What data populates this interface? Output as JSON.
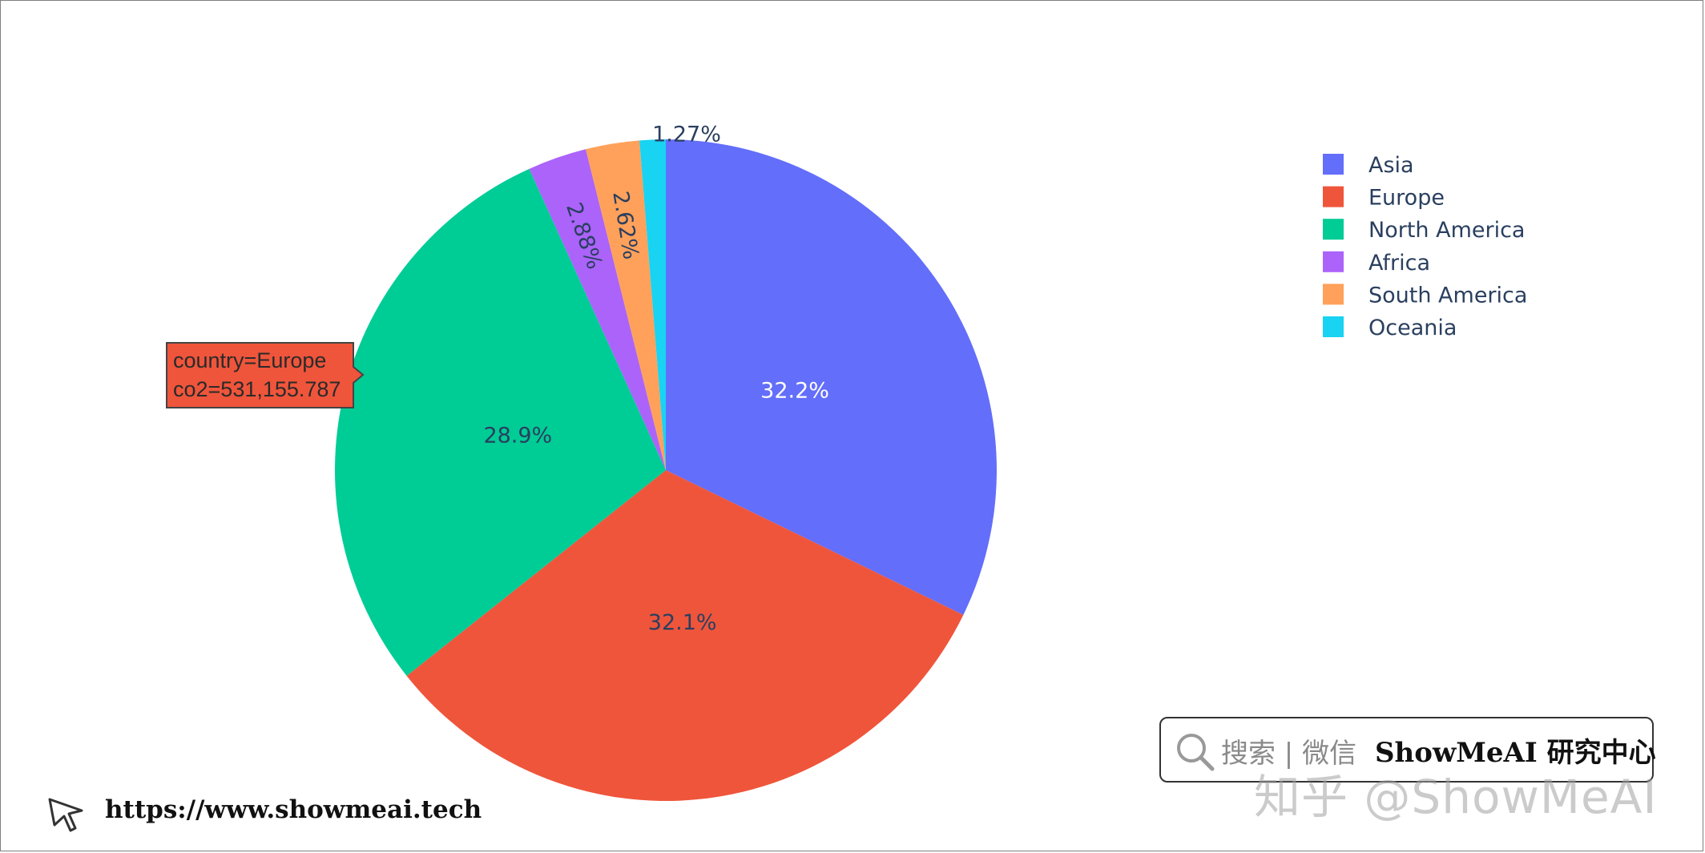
{
  "chart_data": {
    "type": "pie",
    "categories": [
      "Asia",
      "Europe",
      "North America",
      "Africa",
      "South America",
      "Oceania"
    ],
    "values": [
      32.2,
      32.1,
      28.9,
      2.88,
      2.62,
      1.27
    ],
    "labels": [
      "32.2%",
      "32.1%",
      "28.9%",
      "2.88%",
      "2.62%",
      "1.27%"
    ],
    "colors": [
      "#636efa",
      "#ef553b",
      "#00cc96",
      "#ab63fa",
      "#ffa15a",
      "#19d3f3"
    ],
    "label_colors": [
      "#ffffff",
      "#2a3f5f",
      "#2a3f5f",
      "#2a3f5f",
      "#2a3f5f",
      "#2a3f5f"
    ],
    "legend_position": "top-right",
    "hover": {
      "line1": "country=Europe",
      "line2": "co2=531,155.787",
      "target": "Europe"
    }
  },
  "watermark": {
    "search_text": "搜索 | 微信",
    "brand_text": "ShowMeAI 研究中心",
    "zhihu_text": "知乎 @ShowMeAI",
    "url": "https://www.showmeai.tech"
  }
}
